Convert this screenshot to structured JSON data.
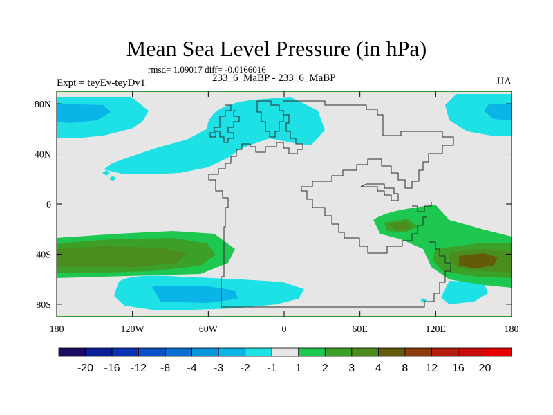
{
  "map": {
    "title": "Mean Sea Level Pressure (in hPa)",
    "stats": "rmsd= 1.09017 diff= -0.0166016",
    "left_label": "Expt = teyEv-teyDv1",
    "center_label": "233_6_MaBP - 233_6_MaBP",
    "right_label": "JJA",
    "lat_ticks": [
      {
        "label": "80N",
        "lat": 80
      },
      {
        "label": "40N",
        "lat": 40
      },
      {
        "label": "0",
        "lat": 0
      },
      {
        "label": "40S",
        "lat": -40
      },
      {
        "label": "80S",
        "lat": -80
      }
    ],
    "lon_ticks": [
      {
        "label": "180",
        "lon": -180
      },
      {
        "label": "120W",
        "lon": -120
      },
      {
        "label": "60W",
        "lon": -60
      },
      {
        "label": "0",
        "lon": 0
      },
      {
        "label": "60E",
        "lon": 60
      },
      {
        "label": "120E",
        "lon": 120
      },
      {
        "label": "180",
        "lon": 180
      }
    ],
    "lat_range": [
      -90,
      90
    ],
    "lon_range": [
      -180,
      180
    ]
  },
  "colorbar": {
    "labels": [
      "-20",
      "-16",
      "-12",
      "-8",
      "-4",
      "-3",
      "-2",
      "-1",
      "1",
      "2",
      "3",
      "4",
      "8",
      "12",
      "16",
      "20"
    ],
    "colors": [
      "#1c0a64",
      "#0a1e96",
      "#0a32b4",
      "#0a50c8",
      "#0a6ed2",
      "#0a96dc",
      "#0ab4e6",
      "#1ee1e6",
      "#e6e6e6",
      "#1ec850",
      "#3ca028",
      "#4b8c1e",
      "#645a0a",
      "#8c3c0a",
      "#b41e0a",
      "#c80a0a",
      "#e60000"
    ]
  },
  "colors": {
    "neutral": "#e6e6e6",
    "coast": "#2a2a2a"
  }
}
